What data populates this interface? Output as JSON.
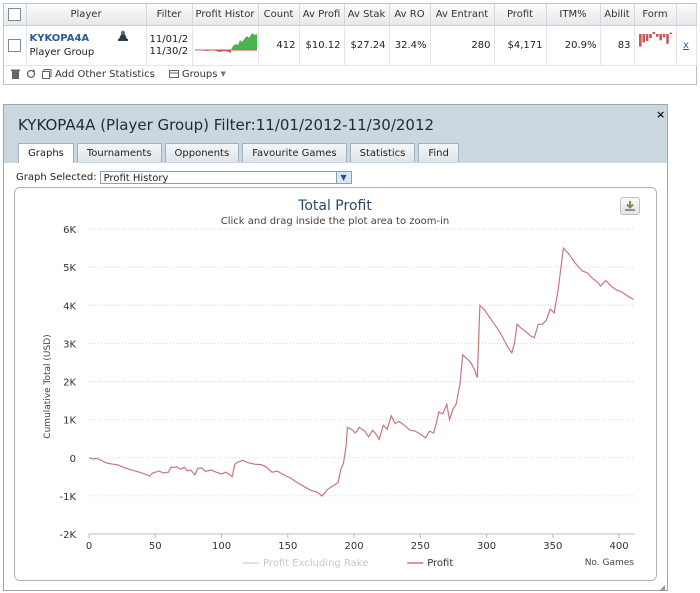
{
  "top_table": {
    "headers": [
      "Player",
      "Filter",
      "Profit Histor",
      "Count",
      "Av Profi",
      "Av Stak",
      "Av RO",
      "Av Entrant",
      "Profit",
      "ITM%",
      "Abilit",
      "Form"
    ],
    "row": {
      "player_name": "KYKOPA4A",
      "player_type": "Player Group",
      "filter_line1": "11/01/2",
      "filter_line2": "11/30/2",
      "count": "412",
      "av_profit": "$10.12",
      "av_stake": "$27.24",
      "av_roi": "32.4%",
      "av_entrants": "280",
      "profit": "$4,171",
      "itm": "20.9%",
      "ability": "83",
      "remove": "x"
    },
    "form_values": [
      -0.9,
      -0.6,
      -0.5,
      -0.3,
      0.15,
      -0.2,
      -0.45,
      -0.25,
      -0.7,
      0.1
    ],
    "form_color": "#c8595a",
    "sparkline_up_color": "#4bb34b",
    "sparkline_down_color": "#c8595a"
  },
  "toolbar": {
    "add_stats_label": "Add Other Statistics",
    "groups_label": "Groups"
  },
  "dialog": {
    "title": "KYKOPA4A (Player Group) Filter:11/01/2012-11/30/2012",
    "close": "×",
    "tabs": [
      "Graphs",
      "Tournaments",
      "Opponents",
      "Favourite Games",
      "Statistics",
      "Find"
    ],
    "active_tab": "Graphs",
    "graph_selected_label": "Graph Selected:",
    "graph_selected_value": "Profit History"
  },
  "chart_data": {
    "type": "line",
    "title": "Total Profit",
    "subtitle": "Click and drag inside the plot area to zoom-in",
    "xlabel": "No. Games",
    "ylabel": "Cumulative Total (USD)",
    "xlim": [
      0,
      412
    ],
    "ylim": [
      -2000,
      6000
    ],
    "xticks": [
      0,
      50,
      100,
      150,
      200,
      250,
      300,
      350,
      400
    ],
    "yticks": [
      -2000,
      -1000,
      0,
      1000,
      2000,
      3000,
      4000,
      5000,
      6000
    ],
    "ytick_labels": [
      "-2K",
      "-1K",
      "0",
      "1K",
      "2K",
      "3K",
      "4K",
      "5K",
      "6K"
    ],
    "grid": true,
    "legend_position": "bottom-center",
    "series": [
      {
        "name": "Profit Excluding Rake",
        "color": "#d8d8d8",
        "visible": false,
        "points": []
      },
      {
        "name": "Profit",
        "color": "#c9777a",
        "visible": true,
        "points": [
          [
            0,
            0
          ],
          [
            3,
            -30
          ],
          [
            6,
            -20
          ],
          [
            9,
            -60
          ],
          [
            12,
            -120
          ],
          [
            15,
            -150
          ],
          [
            18,
            -170
          ],
          [
            22,
            -190
          ],
          [
            26,
            -250
          ],
          [
            30,
            -300
          ],
          [
            34,
            -340
          ],
          [
            38,
            -380
          ],
          [
            42,
            -430
          ],
          [
            46,
            -480
          ],
          [
            48,
            -400
          ],
          [
            50,
            -380
          ],
          [
            53,
            -350
          ],
          [
            56,
            -400
          ],
          [
            60,
            -380
          ],
          [
            62,
            -240
          ],
          [
            64,
            -260
          ],
          [
            66,
            -230
          ],
          [
            69,
            -300
          ],
          [
            72,
            -250
          ],
          [
            74,
            -340
          ],
          [
            77,
            -330
          ],
          [
            80,
            -450
          ],
          [
            82,
            -280
          ],
          [
            85,
            -270
          ],
          [
            88,
            -360
          ],
          [
            92,
            -320
          ],
          [
            96,
            -380
          ],
          [
            100,
            -430
          ],
          [
            103,
            -380
          ],
          [
            106,
            -440
          ],
          [
            108,
            -500
          ],
          [
            110,
            -170
          ],
          [
            112,
            -120
          ],
          [
            116,
            -70
          ],
          [
            120,
            -130
          ],
          [
            125,
            -170
          ],
          [
            130,
            -180
          ],
          [
            134,
            -250
          ],
          [
            138,
            -380
          ],
          [
            142,
            -350
          ],
          [
            147,
            -450
          ],
          [
            152,
            -530
          ],
          [
            157,
            -650
          ],
          [
            162,
            -750
          ],
          [
            167,
            -850
          ],
          [
            172,
            -900
          ],
          [
            176,
            -1000
          ],
          [
            180,
            -830
          ],
          [
            183,
            -760
          ],
          [
            186,
            -700
          ],
          [
            188,
            -650
          ],
          [
            190,
            -300
          ],
          [
            192,
            -150
          ],
          [
            194,
            300
          ],
          [
            195,
            800
          ],
          [
            198,
            750
          ],
          [
            201,
            650
          ],
          [
            204,
            800
          ],
          [
            208,
            700
          ],
          [
            211,
            550
          ],
          [
            214,
            720
          ],
          [
            217,
            600
          ],
          [
            219,
            480
          ],
          [
            222,
            850
          ],
          [
            225,
            750
          ],
          [
            228,
            1100
          ],
          [
            231,
            900
          ],
          [
            234,
            950
          ],
          [
            238,
            850
          ],
          [
            242,
            730
          ],
          [
            246,
            700
          ],
          [
            250,
            620
          ],
          [
            254,
            520
          ],
          [
            257,
            700
          ],
          [
            260,
            650
          ],
          [
            262,
            900
          ],
          [
            264,
            1200
          ],
          [
            267,
            1150
          ],
          [
            270,
            1400
          ],
          [
            272,
            1000
          ],
          [
            275,
            1300
          ],
          [
            277,
            1400
          ],
          [
            280,
            1950
          ],
          [
            282,
            2700
          ],
          [
            285,
            2600
          ],
          [
            288,
            2500
          ],
          [
            291,
            2300
          ],
          [
            293,
            2100
          ],
          [
            295,
            4000
          ],
          [
            298,
            3900
          ],
          [
            302,
            3700
          ],
          [
            306,
            3500
          ],
          [
            310,
            3300
          ],
          [
            313,
            3100
          ],
          [
            316,
            2900
          ],
          [
            319,
            2750
          ],
          [
            321,
            3000
          ],
          [
            323,
            3500
          ],
          [
            326,
            3400
          ],
          [
            330,
            3300
          ],
          [
            333,
            3200
          ],
          [
            336,
            3150
          ],
          [
            339,
            3500
          ],
          [
            342,
            3500
          ],
          [
            345,
            3600
          ],
          [
            348,
            3900
          ],
          [
            351,
            3800
          ],
          [
            354,
            4400
          ],
          [
            358,
            5500
          ],
          [
            362,
            5350
          ],
          [
            367,
            5100
          ],
          [
            372,
            4900
          ],
          [
            376,
            4850
          ],
          [
            380,
            4700
          ],
          [
            384,
            4600
          ],
          [
            386,
            4500
          ],
          [
            390,
            4650
          ],
          [
            394,
            4500
          ],
          [
            398,
            4400
          ],
          [
            402,
            4350
          ],
          [
            406,
            4250
          ],
          [
            411,
            4150
          ]
        ]
      }
    ]
  }
}
